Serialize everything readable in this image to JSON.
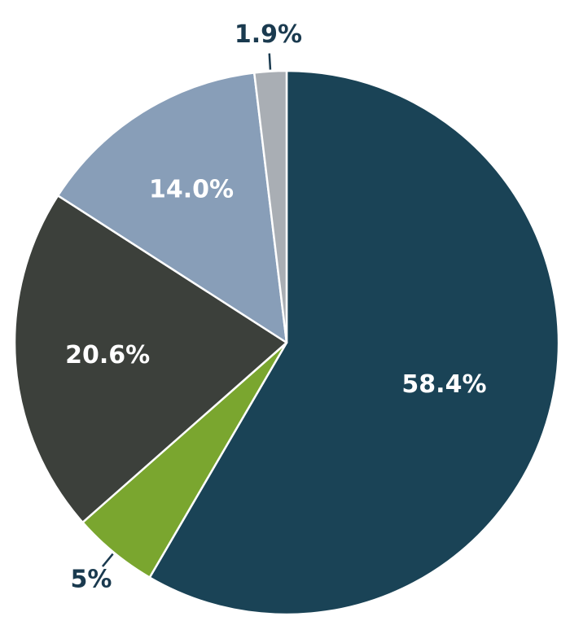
{
  "chart_data": {
    "type": "pie",
    "start": "top",
    "direction": "clockwise",
    "slices": [
      {
        "label": "58.4%",
        "value": 58.4,
        "color": "#1a4356",
        "label_color": "#ffffff",
        "label_position": "inside"
      },
      {
        "label": "5%",
        "value": 5.1,
        "color": "#7aa62f",
        "label_color": "#1a3a4f",
        "label_position": "outside"
      },
      {
        "label": "20.6%",
        "value": 20.6,
        "color": "#3c403b",
        "label_color": "#ffffff",
        "label_position": "inside"
      },
      {
        "label": "14.0%",
        "value": 14.0,
        "color": "#889eb8",
        "label_color": "#ffffff",
        "label_position": "inside"
      },
      {
        "label": "1.9%",
        "value": 1.9,
        "color": "#a9aeb4",
        "label_color": "#1a3a4f",
        "label_position": "outside"
      }
    ]
  }
}
